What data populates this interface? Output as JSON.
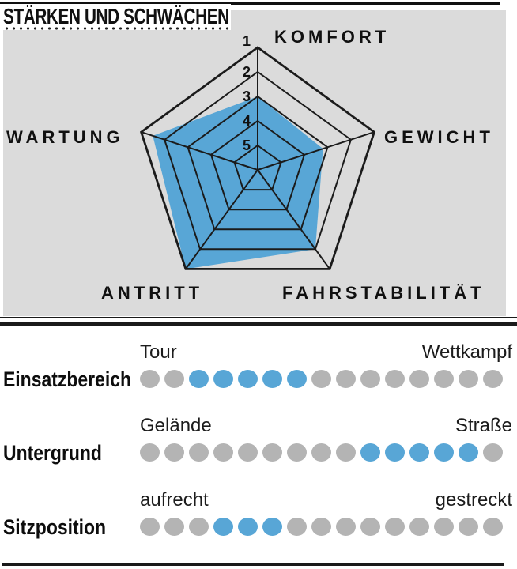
{
  "title": "STÄRKEN UND SCHWÄCHEN",
  "colors": {
    "panel_bg": "#dbdbdb",
    "grid": "#1b1b1b",
    "radar_fill": "#58a6d6",
    "dot_active": "#58a6d6",
    "dot_inactive": "#b4b4b4"
  },
  "radar": {
    "ring_labels": [
      "1",
      "2",
      "3",
      "4",
      "5"
    ],
    "axes": [
      {
        "label": "KOMFORT",
        "value": 3.0
      },
      {
        "label": "GEWICHT",
        "value": 3.2
      },
      {
        "label": "FAHRSTABILITÄT",
        "value": 2.0
      },
      {
        "label": "ANTRITT",
        "value": 1.0
      },
      {
        "label": "WARTUNG",
        "value": 1.5
      }
    ]
  },
  "ratings": {
    "dots_total": 15,
    "rows": [
      {
        "label": "Einsatzbereich",
        "left": "Tour",
        "right": "Wettkampf",
        "active_from": 3,
        "active_to": 7
      },
      {
        "label": "Untergrund",
        "left": "Gelände",
        "right": "Straße",
        "active_from": 10,
        "active_to": 14
      },
      {
        "label": "Sitzposition",
        "left": "aufrecht",
        "right": "gestreckt",
        "active_from": 4,
        "active_to": 6
      }
    ]
  },
  "chart_data": [
    {
      "type": "radar",
      "title": "STÄRKEN UND SCHWÄCHEN",
      "categories": [
        "KOMFORT",
        "GEWICHT",
        "FAHRSTABILITÄT",
        "ANTRITT",
        "WARTUNG"
      ],
      "values": [
        3.0,
        3.2,
        2.0,
        1.0,
        1.5
      ],
      "scale": {
        "best": 1,
        "worst": 5,
        "ring_labels": [
          1,
          2,
          3,
          4,
          5
        ],
        "orientation": "grade 1 at outer edge, grade 5 near center",
        "shape": "pentagon"
      },
      "grid": true,
      "legend_position": "none"
    },
    {
      "type": "dot-scale",
      "label": "Einsatzbereich",
      "left_end": "Tour",
      "right_end": "Wettkampf",
      "dots_total": 15,
      "active_dots_range": [
        3,
        7
      ]
    },
    {
      "type": "dot-scale",
      "label": "Untergrund",
      "left_end": "Gelände",
      "right_end": "Straße",
      "dots_total": 15,
      "active_dots_range": [
        10,
        14
      ]
    },
    {
      "type": "dot-scale",
      "label": "Sitzposition",
      "left_end": "aufrecht",
      "right_end": "gestreckt",
      "dots_total": 15,
      "active_dots_range": [
        4,
        6
      ]
    }
  ]
}
